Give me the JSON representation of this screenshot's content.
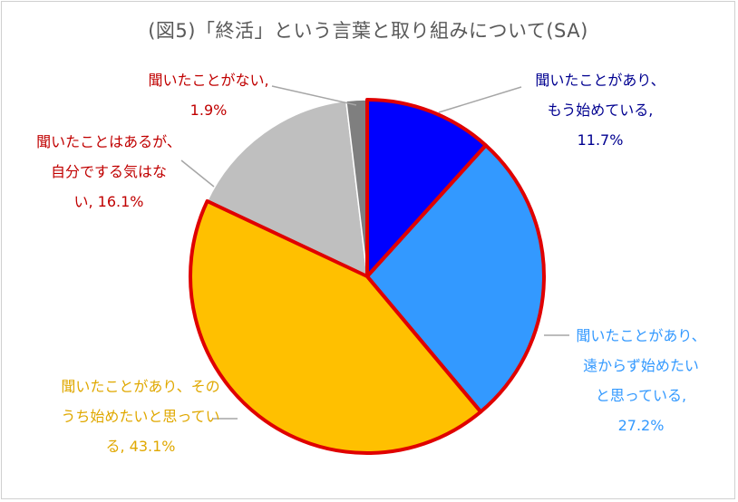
{
  "chart_data": {
    "type": "pie",
    "title": "(図5)「終活」という言葉と取り組みについて(SA)",
    "slices": [
      {
        "lines": [
          "聞いたことがあり、",
          "もう始めている,",
          "11.7%"
        ],
        "value": 11.7,
        "color": "#0000ff",
        "label_color": "#000090",
        "highlighted": true
      },
      {
        "lines": [
          "聞いたことがあり、",
          "遠からず始めたい",
          "と思っている,",
          "27.2%"
        ],
        "value": 27.2,
        "color": "#3399ff",
        "label_color": "#3399ff",
        "highlighted": true
      },
      {
        "lines": [
          "聞いたことがあり、その",
          "うち始めたいと思ってい",
          "る, 43.1%"
        ],
        "value": 43.1,
        "color": "#ffc000",
        "label_color": "#e0a800",
        "highlighted": true
      },
      {
        "lines": [
          "聞いたことはあるが、",
          "自分でする気はな",
          "い, 16.1%"
        ],
        "value": 16.1,
        "color": "#bfbfbf",
        "label_color": "#c00000",
        "highlighted": false
      },
      {
        "lines": [
          "聞いたことがない,",
          "1.9%"
        ],
        "value": 1.9,
        "color": "#7f7f7f",
        "label_color": "#c00000",
        "highlighted": false
      }
    ],
    "highlight_outline_color": "#e00000",
    "legend": "none"
  }
}
